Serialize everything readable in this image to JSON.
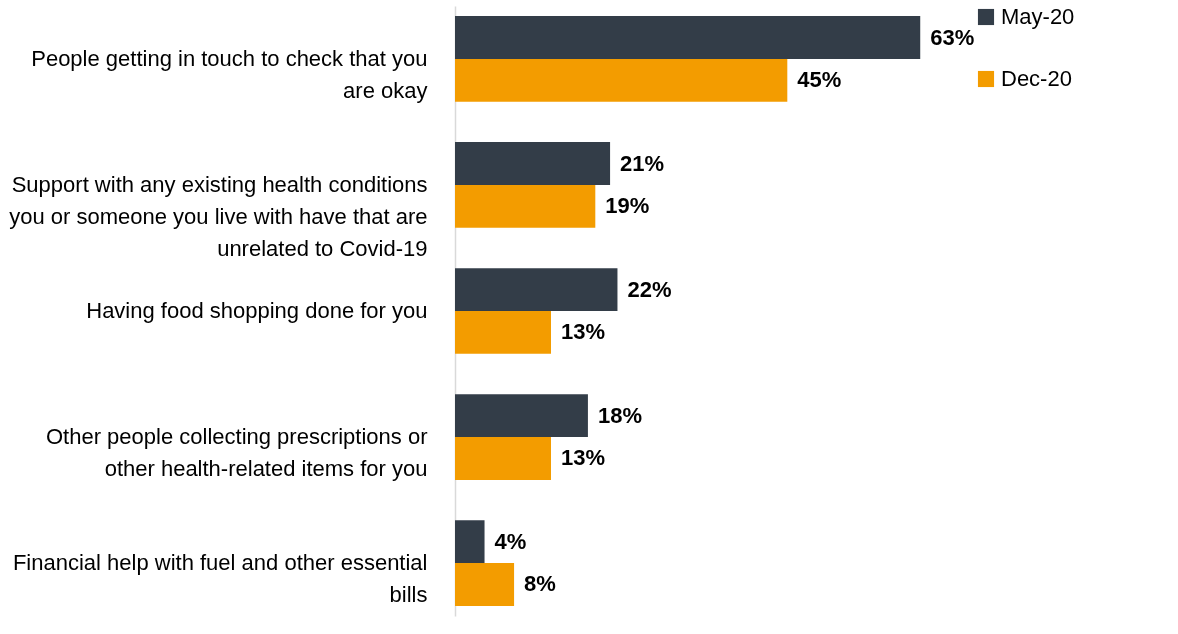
{
  "chart_data": {
    "type": "bar",
    "orientation": "horizontal",
    "legend": "right",
    "categories": [
      "People getting in touch to check that you are okay",
      "Support with any existing health conditions you or someone you live with have that are unrelated to Covid-19",
      "Having food shopping done for you",
      "Other people collecting prescriptions or other health-related items for you",
      "Financial help with fuel and other essential bills"
    ],
    "series": [
      {
        "name": "May-20",
        "color": "#333d48",
        "values": [
          63,
          21,
          22,
          18,
          4
        ],
        "value_labels": [
          "63%",
          "21%",
          "22%",
          "18%",
          "4%"
        ]
      },
      {
        "name": "Dec-20",
        "color": "#f39c00",
        "values": [
          45,
          19,
          13,
          13,
          8
        ],
        "value_labels": [
          "45%",
          "19%",
          "13%",
          "13%",
          "8%"
        ]
      }
    ]
  }
}
